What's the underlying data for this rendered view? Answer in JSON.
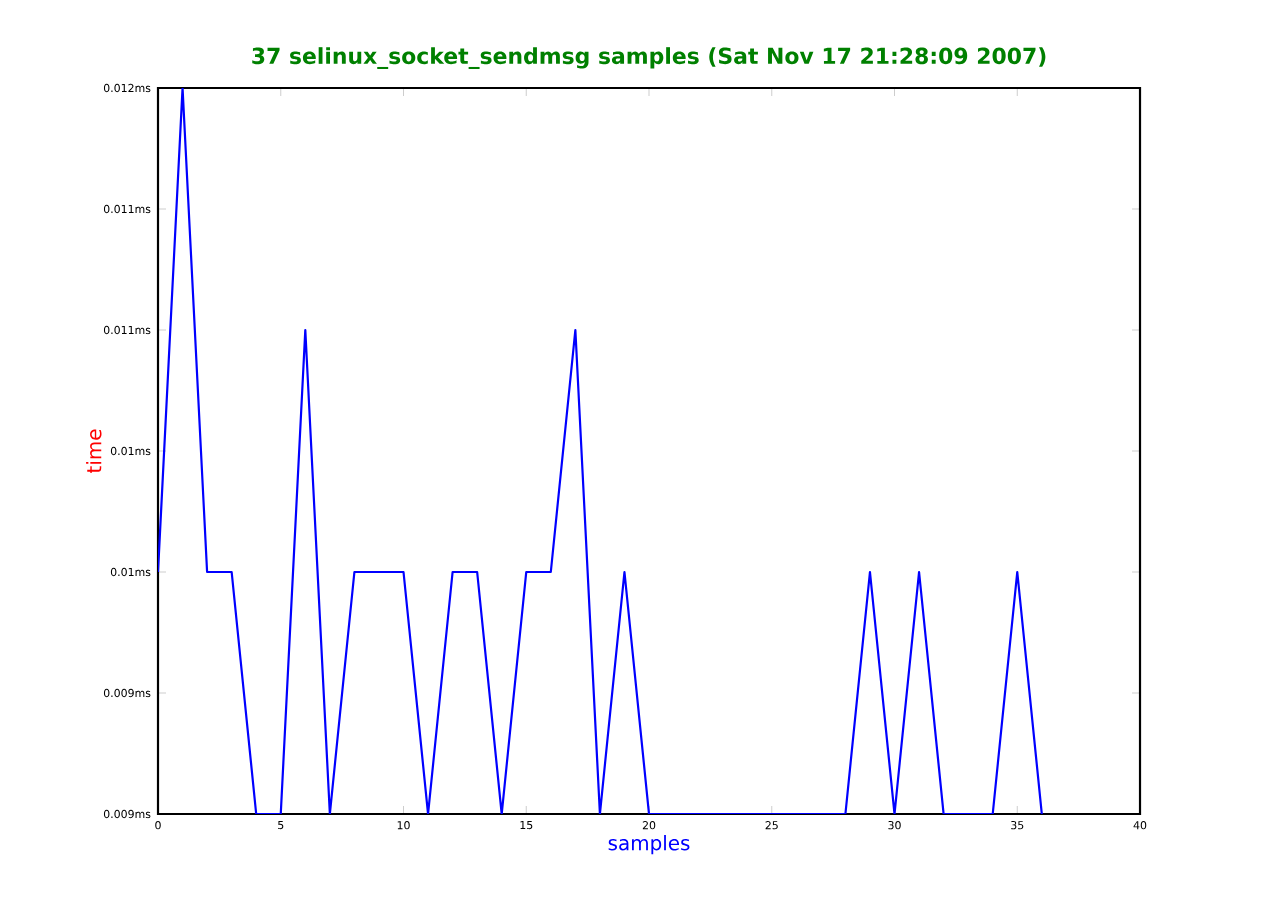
{
  "chart_data": {
    "type": "line",
    "title": "37 selinux_socket_sendmsg samples (Sat Nov 17 21:28:09 2007)",
    "xlabel": "samples",
    "ylabel": "time",
    "x": [
      0,
      1,
      2,
      3,
      4,
      5,
      6,
      7,
      8,
      9,
      10,
      11,
      12,
      13,
      14,
      15,
      16,
      17,
      18,
      19,
      20,
      21,
      22,
      23,
      24,
      25,
      26,
      27,
      28,
      29,
      30,
      31,
      32,
      33,
      34,
      35,
      36
    ],
    "series": [
      {
        "color": "#0000ff",
        "values": [
          0.01,
          0.012,
          0.01,
          0.01,
          0.009,
          0.009,
          0.011,
          0.009,
          0.01,
          0.01,
          0.01,
          0.009,
          0.01,
          0.01,
          0.009,
          0.01,
          0.01,
          0.011,
          0.009,
          0.01,
          0.009,
          0.009,
          0.009,
          0.009,
          0.009,
          0.009,
          0.009,
          0.009,
          0.009,
          0.01,
          0.009,
          0.01,
          0.009,
          0.009,
          0.009,
          0.01,
          0.009
        ]
      }
    ],
    "xlim": [
      0,
      40
    ],
    "xticks": [
      0,
      5,
      10,
      15,
      20,
      25,
      30,
      35,
      40
    ],
    "ylim": [
      0.009,
      0.012
    ],
    "yticks": [
      {
        "value": 0.009,
        "label": "0.009ms"
      },
      {
        "value": 0.0095,
        "label": "0.009ms"
      },
      {
        "value": 0.01,
        "label": "0.01ms"
      },
      {
        "value": 0.0105,
        "label": "0.01ms"
      },
      {
        "value": 0.011,
        "label": "0.011ms"
      },
      {
        "value": 0.0115,
        "label": "0.011ms"
      },
      {
        "value": 0.012,
        "label": "0.012ms"
      }
    ]
  }
}
